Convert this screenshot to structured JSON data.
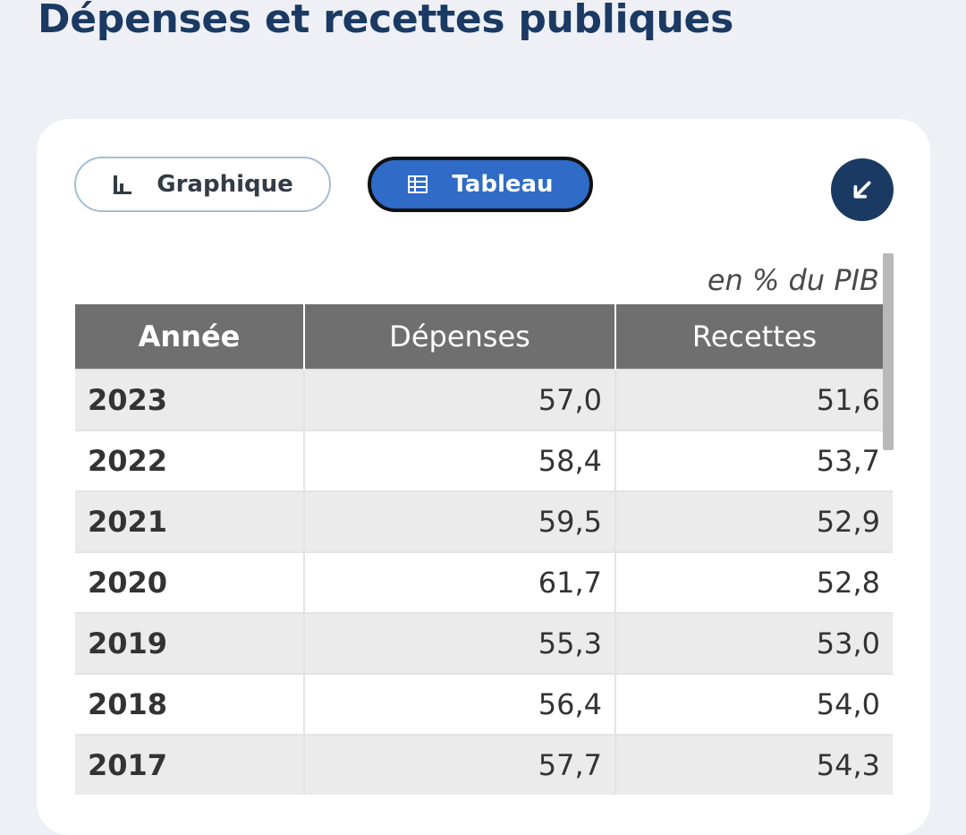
{
  "title": "Dépenses et recettes publiques",
  "view_toggle": {
    "graph_label": "Graphique",
    "table_label": "Tableau",
    "active": "Tableau"
  },
  "collapse_icon": "arrow-down-left-icon",
  "unit": "en % du PIB",
  "table": {
    "headers": [
      "Année",
      "Dépenses",
      "Recettes"
    ],
    "rows": [
      [
        "2023",
        "57,0",
        "51,6"
      ],
      [
        "2022",
        "58,4",
        "53,7"
      ],
      [
        "2021",
        "59,5",
        "52,9"
      ],
      [
        "2020",
        "61,7",
        "52,8"
      ],
      [
        "2019",
        "55,3",
        "53,0"
      ],
      [
        "2018",
        "56,4",
        "54,0"
      ],
      [
        "2017",
        "57,7",
        "54,3"
      ]
    ]
  },
  "colors": {
    "title": "#1b3a63",
    "active_button": "#2f6bc7",
    "header_bg": "#6f6f6f",
    "row_alt_bg": "#ebebeb"
  }
}
